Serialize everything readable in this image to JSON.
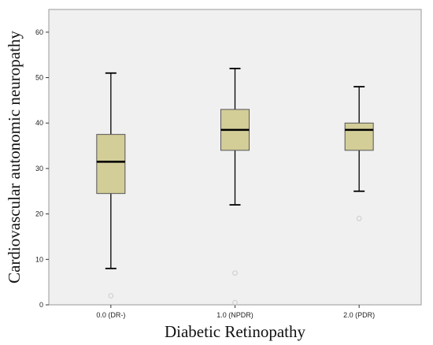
{
  "chart_data": {
    "type": "boxplot",
    "xlabel": "Diabetic Retinopathy",
    "ylabel": "Cardiovascular autonomic neuropathy",
    "ylim": [
      0,
      65
    ],
    "yticks": [
      0,
      10,
      20,
      30,
      40,
      50,
      60
    ],
    "categories": [
      "0.0 (DR-)",
      "1.0 (NPDR)",
      "2.0 (PDR)"
    ],
    "boxes": [
      {
        "category": "0.0 (DR-)",
        "min": 8,
        "q1": 24.5,
        "median": 31.5,
        "q3": 37.5,
        "max": 51,
        "outliers": [
          2
        ]
      },
      {
        "category": "1.0 (NPDR)",
        "min": 22,
        "q1": 34,
        "median": 38.5,
        "q3": 43,
        "max": 52,
        "outliers": [
          7,
          0.5
        ]
      },
      {
        "category": "2.0 (PDR)",
        "min": 25,
        "q1": 34,
        "median": 38.5,
        "q3": 40,
        "max": 48,
        "outliers": [
          19
        ]
      }
    ],
    "grid": false,
    "colors": {
      "plot_background": "#f0f0f0",
      "box_fill": "#d3cd98",
      "stroke": "#000000",
      "outlier": "#cccccc"
    }
  }
}
